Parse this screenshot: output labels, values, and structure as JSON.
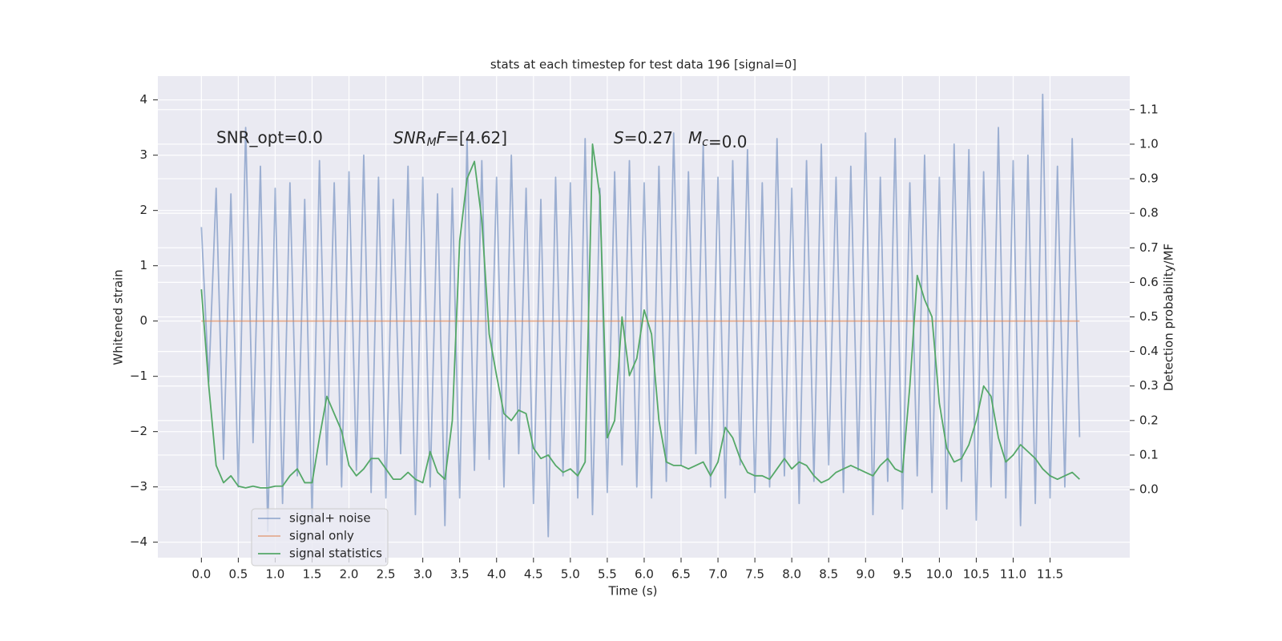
{
  "chart_data": {
    "type": "line",
    "title": "stats at each timestep for test data 196 [signal=0]",
    "xlabel": "Time (s)",
    "ylabel": "Whitened strain",
    "y2label": "Detection probability/MF",
    "grid": true,
    "legend_position": "lower left",
    "annotations": [
      {
        "text": "SNR_opt=0.0",
        "math": false
      },
      {
        "text": "SNR_MF=[4.62]",
        "math": true
      },
      {
        "text": "S=0.27",
        "math": true
      },
      {
        "text": "M_c=0.0",
        "math": true
      }
    ],
    "xlim": [
      -0.59,
      12.58
    ],
    "ylim": [
      -4.28,
      4.43
    ],
    "y2lim": [
      -0.197,
      1.197
    ],
    "xticks": [
      {
        "value": 0,
        "label": "0.0"
      },
      0.5,
      {
        "value": 1,
        "label": "1.0"
      },
      1.5,
      {
        "value": 2,
        "label": "2.0"
      },
      2.5,
      {
        "value": 3,
        "label": "3.0"
      },
      3.5,
      {
        "value": 4,
        "label": "4.0"
      },
      4.5,
      {
        "value": 5,
        "label": "5.0"
      },
      5.5,
      {
        "value": 6,
        "label": "6.0"
      },
      6.5,
      {
        "value": 7,
        "label": "7.0"
      },
      7.5,
      {
        "value": 8,
        "label": "8.0"
      },
      8.5,
      {
        "value": 9,
        "label": "9.0"
      },
      9.5,
      {
        "value": 10,
        "label": "10.0"
      },
      10.5,
      {
        "value": 11,
        "label": "11.0"
      },
      11.5
    ],
    "yticks": [
      {
        "value": -4,
        "label": "−4"
      },
      {
        "value": -3,
        "label": "−3"
      },
      {
        "value": -2,
        "label": "−2"
      },
      {
        "value": -1,
        "label": "−1"
      },
      0,
      1,
      2,
      3,
      4
    ],
    "y2ticks": [
      {
        "value": 0,
        "label": "0.0"
      },
      0.1,
      0.2,
      0.3,
      0.4,
      0.5,
      0.6,
      0.7,
      0.8,
      0.9,
      {
        "value": 1,
        "label": "1.0"
      },
      1.1
    ],
    "x": [
      0,
      0.1,
      0.2,
      0.3,
      0.4,
      0.5,
      0.6,
      0.7,
      0.8,
      0.9,
      1,
      1.1,
      1.2,
      1.3,
      1.4,
      1.5,
      1.6,
      1.7,
      1.8,
      1.9,
      2,
      2.1,
      2.2,
      2.3,
      2.4,
      2.5,
      2.6,
      2.7,
      2.8,
      2.9,
      3,
      3.1,
      3.2,
      3.3,
      3.4,
      3.5,
      3.6,
      3.7,
      3.8,
      3.9,
      4,
      4.1,
      4.2,
      4.3,
      4.4,
      4.5,
      4.6,
      4.7,
      4.8,
      4.9,
      5,
      5.1,
      5.2,
      5.3,
      5.4,
      5.5,
      5.6,
      5.7,
      5.8,
      5.9,
      6,
      6.1,
      6.2,
      6.3,
      6.4,
      6.5,
      6.6,
      6.7,
      6.8,
      6.9,
      7,
      7.1,
      7.2,
      7.3,
      7.4,
      7.5,
      7.6,
      7.7,
      7.8,
      7.9,
      8,
      8.1,
      8.2,
      8.3,
      8.4,
      8.5,
      8.6,
      8.7,
      8.8,
      8.9,
      9,
      9.1,
      9.2,
      9.3,
      9.4,
      9.5,
      9.6,
      9.7,
      9.8,
      9.9,
      10,
      10.1,
      10.2,
      10.3,
      10.4,
      10.5,
      10.6,
      10.7,
      10.8,
      10.9,
      11,
      11.1,
      11.2,
      11.3,
      11.4,
      11.5,
      11.6,
      11.7,
      11.8,
      11.9
    ],
    "series": [
      {
        "name": "signal+ noise",
        "color": "#4c72b0",
        "alpha": 0.5,
        "axis": "y",
        "values": [
          1.7,
          -1.1,
          2.4,
          -2.5,
          2.3,
          -3.0,
          3.5,
          -2.2,
          2.8,
          -3.8,
          2.4,
          -3.3,
          2.5,
          -2.8,
          2.2,
          -3.6,
          2.9,
          -2.6,
          2.5,
          -3.0,
          2.7,
          -2.7,
          3.0,
          -3.1,
          2.6,
          -3.2,
          2.2,
          -2.4,
          2.8,
          -3.5,
          2.6,
          -3.0,
          2.3,
          -3.7,
          2.4,
          -3.2,
          3.3,
          -2.7,
          2.9,
          -2.5,
          2.6,
          -3.0,
          3.0,
          -2.4,
          2.4,
          -3.3,
          2.2,
          -3.9,
          2.6,
          -2.8,
          2.5,
          -3.2,
          3.3,
          -3.5,
          2.4,
          -3.1,
          2.7,
          -2.6,
          2.9,
          -3.0,
          2.5,
          -3.2,
          2.8,
          -2.9,
          3.4,
          -2.6,
          2.7,
          -2.4,
          3.2,
          -3.0,
          2.6,
          -3.2,
          2.9,
          -2.6,
          3.1,
          -3.1,
          2.5,
          -3.0,
          3.3,
          -2.8,
          2.4,
          -3.3,
          2.9,
          -2.9,
          3.2,
          -2.6,
          2.6,
          -3.1,
          2.8,
          -2.7,
          3.4,
          -3.5,
          2.6,
          -2.9,
          3.3,
          -3.4,
          2.5,
          -2.8,
          3.0,
          -3.1,
          2.6,
          -3.4,
          3.2,
          -2.9,
          3.1,
          -3.6,
          2.7,
          -3.0,
          3.5,
          -3.2,
          2.9,
          -3.7,
          3.0,
          -3.3,
          4.1,
          -3.2,
          2.8,
          -3.0,
          3.3,
          -2.1
        ]
      },
      {
        "name": "signal only",
        "color": "#dd8452",
        "alpha": 0.6,
        "axis": "y",
        "values": [
          0,
          0,
          0,
          0,
          0,
          0,
          0,
          0,
          0,
          0,
          0,
          0,
          0,
          0,
          0,
          0,
          0,
          0,
          0,
          0,
          0,
          0,
          0,
          0,
          0,
          0,
          0,
          0,
          0,
          0,
          0,
          0,
          0,
          0,
          0,
          0,
          0,
          0,
          0,
          0,
          0,
          0,
          0,
          0,
          0,
          0,
          0,
          0,
          0,
          0,
          0,
          0,
          0,
          0,
          0,
          0,
          0,
          0,
          0,
          0,
          0,
          0,
          0,
          0,
          0,
          0,
          0,
          0,
          0,
          0,
          0,
          0,
          0,
          0,
          0,
          0,
          0,
          0,
          0,
          0,
          0,
          0,
          0,
          0,
          0,
          0,
          0,
          0,
          0,
          0,
          0,
          0,
          0,
          0,
          0,
          0,
          0,
          0,
          0,
          0,
          0,
          0,
          0,
          0,
          0,
          0,
          0,
          0,
          0,
          0,
          0,
          0,
          0,
          0,
          0,
          0,
          0,
          0,
          0,
          0
        ]
      },
      {
        "name": "signal statistics",
        "color": "#55a868",
        "alpha": 1,
        "axis": "y2",
        "values": [
          0.58,
          0.3,
          0.07,
          0.02,
          0.04,
          0.01,
          0.005,
          0.01,
          0.005,
          0.005,
          0.01,
          0.01,
          0.04,
          0.06,
          0.02,
          0.02,
          0.15,
          0.27,
          0.22,
          0.17,
          0.07,
          0.04,
          0.06,
          0.09,
          0.09,
          0.06,
          0.03,
          0.03,
          0.05,
          0.03,
          0.02,
          0.11,
          0.05,
          0.03,
          0.2,
          0.72,
          0.9,
          0.95,
          0.78,
          0.45,
          0.33,
          0.22,
          0.2,
          0.23,
          0.22,
          0.12,
          0.09,
          0.1,
          0.07,
          0.05,
          0.06,
          0.04,
          0.08,
          1.0,
          0.85,
          0.15,
          0.2,
          0.5,
          0.33,
          0.38,
          0.52,
          0.45,
          0.2,
          0.08,
          0.07,
          0.07,
          0.06,
          0.07,
          0.08,
          0.04,
          0.08,
          0.18,
          0.15,
          0.09,
          0.05,
          0.04,
          0.04,
          0.03,
          0.06,
          0.09,
          0.06,
          0.08,
          0.07,
          0.04,
          0.02,
          0.03,
          0.05,
          0.06,
          0.07,
          0.06,
          0.05,
          0.04,
          0.07,
          0.09,
          0.06,
          0.05,
          0.3,
          0.62,
          0.55,
          0.5,
          0.25,
          0.12,
          0.08,
          0.09,
          0.13,
          0.2,
          0.3,
          0.27,
          0.15,
          0.08,
          0.1,
          0.13,
          0.11,
          0.09,
          0.06,
          0.04,
          0.03,
          0.04,
          0.05,
          0.03
        ]
      }
    ]
  }
}
